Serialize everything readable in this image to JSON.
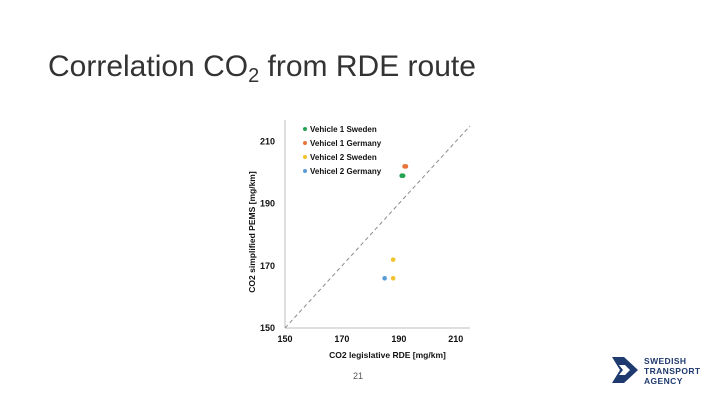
{
  "slide": {
    "title_main": "Correlation CO",
    "title_sub": "2",
    "title_end": " from RDE route",
    "page_number": "21"
  },
  "logo": {
    "line1": "SWEDISH",
    "line2": "TRANSPORT",
    "line3": "AGENCY",
    "color": "#1f3a6e"
  },
  "chart_data": {
    "type": "scatter",
    "title": "",
    "xlabel": "CO2 legislative RDE [mg/km]",
    "ylabel": "CO2 simplified PEMS [mg/km]",
    "xlim": [
      150,
      215
    ],
    "ylim": [
      150,
      215
    ],
    "xticks": [
      150,
      170,
      190,
      210
    ],
    "yticks": [
      150,
      170,
      190,
      210
    ],
    "grid": false,
    "legend_position": "top-left",
    "reference_line": "y = x (dashed)",
    "series": [
      {
        "name": "Vehicle 1 Sweden",
        "color": "#22a350",
        "points": [
          [
            191.0,
            199.0
          ],
          [
            191.5,
            199.0
          ]
        ]
      },
      {
        "name": "Vehicel 1 Germany",
        "color": "#e8743b",
        "points": [
          [
            192.0,
            202.0
          ],
          [
            192.5,
            202.0
          ]
        ]
      },
      {
        "name": "Vehicel 2 Sweden",
        "color": "#f2c12e",
        "points": [
          [
            188.0,
            172.0
          ],
          [
            188.0,
            166.0
          ]
        ]
      },
      {
        "name": "Vehicel 2 Germany",
        "color": "#5b9bd5",
        "points": [
          [
            185.0,
            166.0
          ]
        ]
      }
    ]
  }
}
